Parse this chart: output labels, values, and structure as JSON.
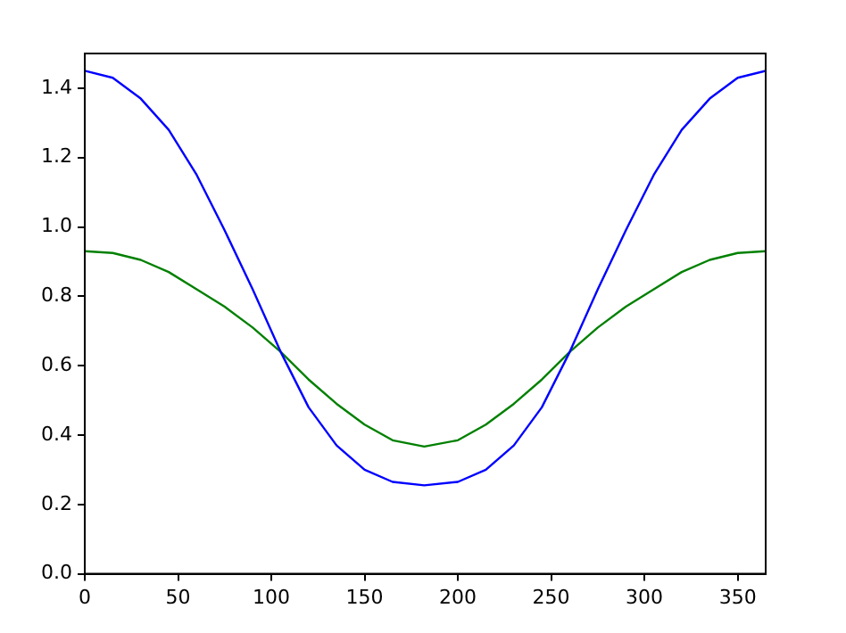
{
  "chart_data": {
    "type": "line",
    "x": [
      0,
      15,
      30,
      45,
      60,
      75,
      90,
      105,
      120,
      135,
      150,
      165,
      182,
      200,
      215,
      230,
      245,
      260,
      275,
      290,
      305,
      320,
      335,
      350,
      365
    ],
    "series": [
      {
        "color": "#0000ff",
        "values": [
          1.45,
          1.43,
          1.37,
          1.28,
          1.15,
          0.99,
          0.82,
          0.64,
          0.48,
          0.37,
          0.3,
          0.265,
          0.255,
          0.265,
          0.3,
          0.37,
          0.48,
          0.64,
          0.82,
          0.99,
          1.15,
          1.28,
          1.37,
          1.43,
          1.45
        ]
      },
      {
        "color": "#008000",
        "values": [
          0.93,
          0.925,
          0.905,
          0.87,
          0.82,
          0.77,
          0.71,
          0.64,
          0.56,
          0.49,
          0.43,
          0.385,
          0.367,
          0.385,
          0.43,
          0.49,
          0.56,
          0.64,
          0.71,
          0.77,
          0.82,
          0.87,
          0.905,
          0.925,
          0.93
        ]
      }
    ],
    "xlim": [
      0,
      365
    ],
    "xticks": [
      0,
      50,
      100,
      150,
      200,
      250,
      300,
      350
    ],
    "ylim": [
      0,
      1.5
    ],
    "yticks": [
      {
        "value": 0,
        "label": "0.0"
      },
      {
        "value": 0.2,
        "label": "0.2"
      },
      {
        "value": 0.4,
        "label": "0.4"
      },
      {
        "value": 0.6,
        "label": "0.6"
      },
      {
        "value": 0.8,
        "label": "0.8"
      },
      {
        "value": 1,
        "label": "1.0"
      },
      {
        "value": 1.2,
        "label": "1.2"
      },
      {
        "value": 1.4,
        "label": "1.4"
      }
    ],
    "grid": false,
    "legend": false,
    "marker": "none",
    "line_style": "solid"
  }
}
